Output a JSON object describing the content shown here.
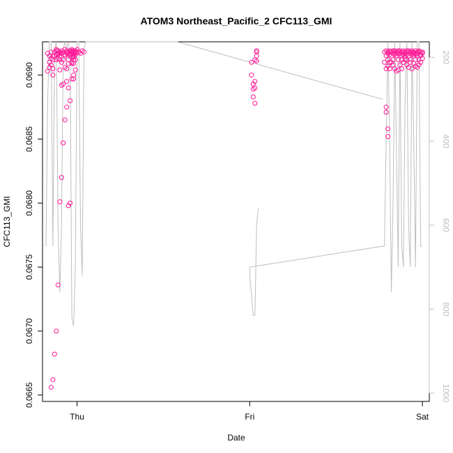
{
  "chart_data": {
    "type": "scatter",
    "title": "ATOM3 Northeast_Pacific_2 CFC113_GMI",
    "xlabel": "Date",
    "ylabel": "CFC113_GMI",
    "x_ticks": [
      {
        "value": 0,
        "label": "Thu"
      },
      {
        "value": 1,
        "label": "Fri"
      },
      {
        "value": 2,
        "label": "Sat"
      }
    ],
    "xlim": [
      -0.2,
      2.04
    ],
    "ylim": [
      0.06645,
      0.06926
    ],
    "y_ticks": [
      0.0665,
      0.067,
      0.0675,
      0.068,
      0.0685,
      0.069
    ],
    "y_tick_labels": [
      "0.0665",
      "0.0670",
      "0.0675",
      "0.0680",
      "0.0685",
      "0.0690"
    ],
    "y2lim": [
      1020,
      163
    ],
    "y2_ticks": [
      200,
      400,
      600,
      800,
      1000
    ],
    "y2_tick_labels": [
      "200",
      "400",
      "600",
      "800",
      "1000"
    ],
    "colors": {
      "points": "#ff1493",
      "pressure_line": "#bebebe",
      "axis": "#000000"
    },
    "series": [
      {
        "name": "",
        "axis": "left",
        "style": "points",
        "x": [
          -0.17,
          -0.16,
          -0.16,
          -0.15,
          -0.15,
          -0.14,
          -0.14,
          -0.14,
          -0.13,
          -0.13,
          -0.12,
          -0.12,
          -0.12,
          -0.11,
          -0.11,
          -0.11,
          -0.1,
          -0.1,
          -0.1,
          -0.1,
          -0.09,
          -0.09,
          -0.09,
          -0.08,
          -0.08,
          -0.07,
          -0.07,
          -0.07,
          -0.06,
          -0.06,
          -0.06,
          -0.05,
          -0.05,
          -0.05,
          -0.04,
          -0.04,
          -0.04,
          -0.03,
          -0.03,
          -0.03,
          -0.02,
          -0.02,
          -0.02,
          -0.02,
          -0.03,
          -0.04,
          -0.05,
          -0.06,
          -0.07,
          -0.08,
          -0.09,
          -0.1,
          -0.11,
          -0.12,
          -0.13,
          -0.14,
          -0.15,
          -0.03,
          -0.03,
          -0.02,
          -0.02,
          -0.02,
          -0.01,
          -0.01,
          -0.01,
          -0.01,
          -0.02,
          -0.04,
          -0.04,
          -0.05,
          -0.06,
          -0.06,
          -0.07,
          -0.08,
          -0.09,
          -0.1,
          -0.11,
          -0.12,
          -0.13,
          -0.14,
          -0.15,
          -0.16,
          -0.17,
          0.0,
          0.0,
          -0.01,
          -0.01,
          -0.02,
          -0.02,
          -0.03,
          -0.03,
          0.01,
          0.02,
          0.03,
          0.04
        ],
        "y": [
          0.06917,
          0.06915,
          0.0691,
          0.06913,
          0.06918,
          0.06905,
          0.06915,
          0.069,
          0.06915,
          0.06918,
          0.06916,
          0.0692,
          0.06912,
          0.06917,
          0.06919,
          0.06913,
          0.06917,
          0.06918,
          0.06915,
          0.06912,
          0.0691,
          0.06919,
          0.06917,
          0.06918,
          0.06912,
          0.0692,
          0.06915,
          0.06916,
          0.06918,
          0.06919,
          0.06917,
          0.06909,
          0.06918,
          0.06912,
          0.06917,
          0.06915,
          0.06919,
          0.06918,
          0.0692,
          0.06914,
          0.06917,
          0.06919,
          0.06918,
          0.06909,
          0.06909,
          0.06916,
          0.0689,
          0.06875,
          0.06865,
          0.06847,
          0.0682,
          0.06801,
          0.06736,
          0.067,
          0.06682,
          0.06662,
          0.06656,
          0.06897,
          0.0691,
          0.06912,
          0.06915,
          0.069,
          0.06917,
          0.06919,
          0.06916,
          0.06904,
          0.06897,
          0.0688,
          0.068,
          0.06798,
          0.06895,
          0.06905,
          0.06906,
          0.06893,
          0.06892,
          0.06904,
          0.06916,
          0.06919,
          0.06915,
          0.06912,
          0.06908,
          0.06906,
          0.06903,
          0.06918,
          0.0692,
          0.06918,
          0.06912,
          0.06917,
          0.06914,
          0.06919,
          0.06916,
          0.06918,
          0.06917,
          0.06919,
          0.06918
        ]
      },
      {
        "name": "",
        "axis": "left",
        "style": "points",
        "x": [
          1.01,
          1.01,
          1.02,
          1.02,
          1.02,
          1.03,
          1.03,
          1.03,
          1.03,
          1.04,
          1.04,
          1.04,
          1.04
        ],
        "y": [
          0.0691,
          0.069,
          0.06893,
          0.06889,
          0.06883,
          0.06878,
          0.06895,
          0.0689,
          0.06912,
          0.06915,
          0.06918,
          0.06919,
          0.06911
        ]
      },
      {
        "name": "",
        "axis": "left",
        "style": "points",
        "x": [
          1.78,
          1.78,
          1.79,
          1.79,
          1.79,
          1.8,
          1.8,
          1.8,
          1.81,
          1.81,
          1.81,
          1.82,
          1.82,
          1.82,
          1.83,
          1.83,
          1.83,
          1.84,
          1.84,
          1.84,
          1.85,
          1.85,
          1.85,
          1.86,
          1.86,
          1.86,
          1.87,
          1.87,
          1.87,
          1.88,
          1.88,
          1.88,
          1.89,
          1.89,
          1.89,
          1.9,
          1.9,
          1.9,
          1.91,
          1.91,
          1.91,
          1.92,
          1.92,
          1.92,
          1.93,
          1.93,
          1.93,
          1.94,
          1.94,
          1.94,
          1.95,
          1.95,
          1.95,
          1.96,
          1.96,
          1.96,
          1.97,
          1.97,
          1.97,
          1.98,
          1.98,
          1.98,
          1.99,
          1.99,
          1.99,
          2.0,
          2.0,
          2.0,
          1.79,
          1.79,
          1.8,
          1.8,
          1.8,
          1.81,
          1.81,
          1.83,
          1.84,
          1.85,
          1.86,
          1.87,
          1.88,
          1.89,
          1.9,
          1.91,
          1.92,
          1.93,
          1.94,
          1.95,
          1.96,
          1.97,
          1.98,
          1.99
        ],
        "y": [
          0.06918,
          0.0691,
          0.06915,
          0.06919,
          0.06905,
          0.06917,
          0.06918,
          0.06912,
          0.06919,
          0.06916,
          0.06918,
          0.06918,
          0.06915,
          0.0691,
          0.06917,
          0.06919,
          0.06912,
          0.06918,
          0.06916,
          0.06919,
          0.06918,
          0.06915,
          0.06917,
          0.06919,
          0.06912,
          0.06918,
          0.06915,
          0.06917,
          0.06919,
          0.06918,
          0.06915,
          0.06912,
          0.06919,
          0.06916,
          0.06918,
          0.06917,
          0.06918,
          0.06915,
          0.06912,
          0.06919,
          0.06916,
          0.06918,
          0.06915,
          0.06919,
          0.06917,
          0.06918,
          0.06912,
          0.06916,
          0.06919,
          0.06918,
          0.06915,
          0.06917,
          0.06918,
          0.06912,
          0.06919,
          0.06916,
          0.06918,
          0.06915,
          0.06917,
          0.06918,
          0.06919,
          0.06912,
          0.06916,
          0.06918,
          0.06915,
          0.06917,
          0.06918,
          0.06913,
          0.06875,
          0.06871,
          0.06858,
          0.06852,
          0.06907,
          0.06905,
          0.0691,
          0.06908,
          0.06905,
          0.06903,
          0.06904,
          0.06908,
          0.06905,
          0.0691,
          0.06912,
          0.06908,
          0.06906,
          0.0691,
          0.06905,
          0.06909,
          0.06907,
          0.06906,
          0.06908,
          0.0691
        ]
      },
      {
        "name": "",
        "axis": "right",
        "style": "line",
        "segments": [
          {
            "x": [
              -0.18,
              -0.17,
              -0.16,
              -0.15,
              -0.14,
              -0.13,
              -0.12,
              -0.11,
              -0.1,
              -0.09,
              -0.08,
              -0.07,
              -0.06,
              -0.05,
              -0.04,
              -0.03,
              -0.02,
              -0.01,
              0.0,
              0.01,
              0.02,
              0.03,
              0.04,
              0.05,
              0.58
            ],
            "y": [
              650,
              300,
              100,
              160,
              650,
              180,
              120,
              600,
              760,
              600,
              180,
              140,
              180,
              140,
              200,
              820,
              840,
              700,
              100,
              160,
              600,
              720,
              180,
              160,
              160
            ]
          },
          {
            "x": [
              1.0,
              1.0,
              1.02,
              1.03,
              1.04,
              1.05,
              1.05
            ],
            "y": [
              700,
              720,
              815,
              815,
              600,
              560,
              560
            ]
          },
          {
            "x": [
              1.0,
              1.77,
              1.78,
              1.79,
              1.8,
              1.81,
              1.82,
              1.83,
              1.84,
              1.85,
              1.86,
              1.87,
              1.88,
              1.89,
              1.9,
              1.91,
              1.92,
              1.93,
              1.94,
              1.95,
              1.96,
              1.97,
              1.98,
              1.99,
              2.0
            ],
            "y": [
              700,
              650,
              650,
              400,
              100,
              380,
              760,
              550,
              100,
              420,
              700,
              100,
              650,
              700,
              300,
              100,
              600,
              700,
              100,
              400,
              700,
              100,
              100,
              650,
              650
            ]
          },
          {
            "x": [
              0.58,
              1.77
            ],
            "y": [
              160,
              300
            ]
          }
        ]
      }
    ]
  }
}
